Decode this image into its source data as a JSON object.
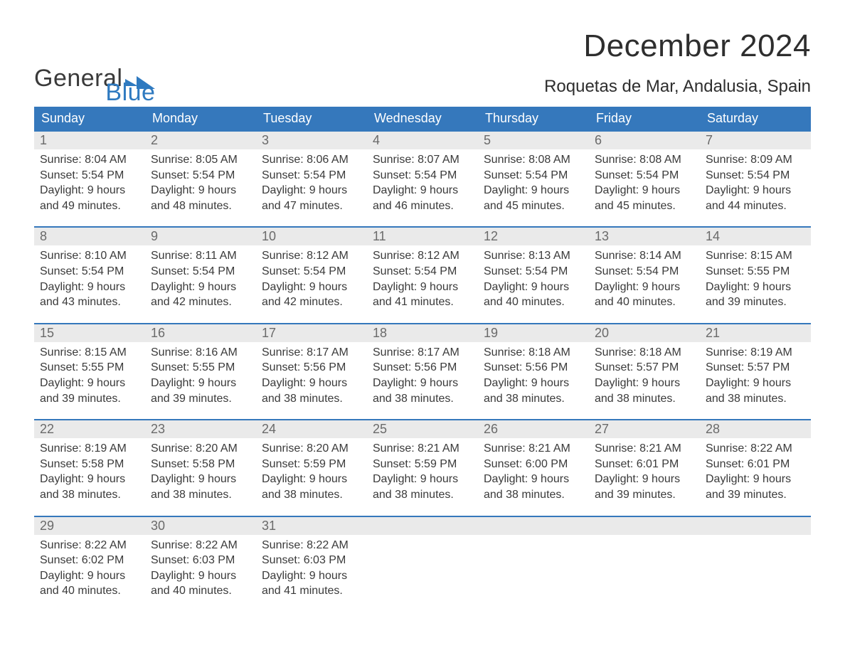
{
  "logo": {
    "text_general": "General",
    "text_blue": "Blue"
  },
  "title": "December 2024",
  "location": "Roquetas de Mar, Andalusia, Spain",
  "colors": {
    "header_bg": "#3578bc",
    "header_text": "#ffffff",
    "daynum_bg": "#eaeaea",
    "daynum_text": "#6a6a6a",
    "body_text": "#3a3a3a",
    "logo_blue": "#2f7ac0",
    "rule": "#3578bc",
    "background": "#ffffff"
  },
  "typography": {
    "title_fontsize": 44,
    "location_fontsize": 24,
    "dow_fontsize": 18,
    "daynum_fontsize": 18,
    "cell_fontsize": 16
  },
  "days_of_week": [
    "Sunday",
    "Monday",
    "Tuesday",
    "Wednesday",
    "Thursday",
    "Friday",
    "Saturday"
  ],
  "weeks": [
    [
      {
        "n": "1",
        "sunrise": "Sunrise: 8:04 AM",
        "sunset": "Sunset: 5:54 PM",
        "d1": "Daylight: 9 hours",
        "d2": "and 49 minutes."
      },
      {
        "n": "2",
        "sunrise": "Sunrise: 8:05 AM",
        "sunset": "Sunset: 5:54 PM",
        "d1": "Daylight: 9 hours",
        "d2": "and 48 minutes."
      },
      {
        "n": "3",
        "sunrise": "Sunrise: 8:06 AM",
        "sunset": "Sunset: 5:54 PM",
        "d1": "Daylight: 9 hours",
        "d2": "and 47 minutes."
      },
      {
        "n": "4",
        "sunrise": "Sunrise: 8:07 AM",
        "sunset": "Sunset: 5:54 PM",
        "d1": "Daylight: 9 hours",
        "d2": "and 46 minutes."
      },
      {
        "n": "5",
        "sunrise": "Sunrise: 8:08 AM",
        "sunset": "Sunset: 5:54 PM",
        "d1": "Daylight: 9 hours",
        "d2": "and 45 minutes."
      },
      {
        "n": "6",
        "sunrise": "Sunrise: 8:08 AM",
        "sunset": "Sunset: 5:54 PM",
        "d1": "Daylight: 9 hours",
        "d2": "and 45 minutes."
      },
      {
        "n": "7",
        "sunrise": "Sunrise: 8:09 AM",
        "sunset": "Sunset: 5:54 PM",
        "d1": "Daylight: 9 hours",
        "d2": "and 44 minutes."
      }
    ],
    [
      {
        "n": "8",
        "sunrise": "Sunrise: 8:10 AM",
        "sunset": "Sunset: 5:54 PM",
        "d1": "Daylight: 9 hours",
        "d2": "and 43 minutes."
      },
      {
        "n": "9",
        "sunrise": "Sunrise: 8:11 AM",
        "sunset": "Sunset: 5:54 PM",
        "d1": "Daylight: 9 hours",
        "d2": "and 42 minutes."
      },
      {
        "n": "10",
        "sunrise": "Sunrise: 8:12 AM",
        "sunset": "Sunset: 5:54 PM",
        "d1": "Daylight: 9 hours",
        "d2": "and 42 minutes."
      },
      {
        "n": "11",
        "sunrise": "Sunrise: 8:12 AM",
        "sunset": "Sunset: 5:54 PM",
        "d1": "Daylight: 9 hours",
        "d2": "and 41 minutes."
      },
      {
        "n": "12",
        "sunrise": "Sunrise: 8:13 AM",
        "sunset": "Sunset: 5:54 PM",
        "d1": "Daylight: 9 hours",
        "d2": "and 40 minutes."
      },
      {
        "n": "13",
        "sunrise": "Sunrise: 8:14 AM",
        "sunset": "Sunset: 5:54 PM",
        "d1": "Daylight: 9 hours",
        "d2": "and 40 minutes."
      },
      {
        "n": "14",
        "sunrise": "Sunrise: 8:15 AM",
        "sunset": "Sunset: 5:55 PM",
        "d1": "Daylight: 9 hours",
        "d2": "and 39 minutes."
      }
    ],
    [
      {
        "n": "15",
        "sunrise": "Sunrise: 8:15 AM",
        "sunset": "Sunset: 5:55 PM",
        "d1": "Daylight: 9 hours",
        "d2": "and 39 minutes."
      },
      {
        "n": "16",
        "sunrise": "Sunrise: 8:16 AM",
        "sunset": "Sunset: 5:55 PM",
        "d1": "Daylight: 9 hours",
        "d2": "and 39 minutes."
      },
      {
        "n": "17",
        "sunrise": "Sunrise: 8:17 AM",
        "sunset": "Sunset: 5:56 PM",
        "d1": "Daylight: 9 hours",
        "d2": "and 38 minutes."
      },
      {
        "n": "18",
        "sunrise": "Sunrise: 8:17 AM",
        "sunset": "Sunset: 5:56 PM",
        "d1": "Daylight: 9 hours",
        "d2": "and 38 minutes."
      },
      {
        "n": "19",
        "sunrise": "Sunrise: 8:18 AM",
        "sunset": "Sunset: 5:56 PM",
        "d1": "Daylight: 9 hours",
        "d2": "and 38 minutes."
      },
      {
        "n": "20",
        "sunrise": "Sunrise: 8:18 AM",
        "sunset": "Sunset: 5:57 PM",
        "d1": "Daylight: 9 hours",
        "d2": "and 38 minutes."
      },
      {
        "n": "21",
        "sunrise": "Sunrise: 8:19 AM",
        "sunset": "Sunset: 5:57 PM",
        "d1": "Daylight: 9 hours",
        "d2": "and 38 minutes."
      }
    ],
    [
      {
        "n": "22",
        "sunrise": "Sunrise: 8:19 AM",
        "sunset": "Sunset: 5:58 PM",
        "d1": "Daylight: 9 hours",
        "d2": "and 38 minutes."
      },
      {
        "n": "23",
        "sunrise": "Sunrise: 8:20 AM",
        "sunset": "Sunset: 5:58 PM",
        "d1": "Daylight: 9 hours",
        "d2": "and 38 minutes."
      },
      {
        "n": "24",
        "sunrise": "Sunrise: 8:20 AM",
        "sunset": "Sunset: 5:59 PM",
        "d1": "Daylight: 9 hours",
        "d2": "and 38 minutes."
      },
      {
        "n": "25",
        "sunrise": "Sunrise: 8:21 AM",
        "sunset": "Sunset: 5:59 PM",
        "d1": "Daylight: 9 hours",
        "d2": "and 38 minutes."
      },
      {
        "n": "26",
        "sunrise": "Sunrise: 8:21 AM",
        "sunset": "Sunset: 6:00 PM",
        "d1": "Daylight: 9 hours",
        "d2": "and 38 minutes."
      },
      {
        "n": "27",
        "sunrise": "Sunrise: 8:21 AM",
        "sunset": "Sunset: 6:01 PM",
        "d1": "Daylight: 9 hours",
        "d2": "and 39 minutes."
      },
      {
        "n": "28",
        "sunrise": "Sunrise: 8:22 AM",
        "sunset": "Sunset: 6:01 PM",
        "d1": "Daylight: 9 hours",
        "d2": "and 39 minutes."
      }
    ],
    [
      {
        "n": "29",
        "sunrise": "Sunrise: 8:22 AM",
        "sunset": "Sunset: 6:02 PM",
        "d1": "Daylight: 9 hours",
        "d2": "and 40 minutes."
      },
      {
        "n": "30",
        "sunrise": "Sunrise: 8:22 AM",
        "sunset": "Sunset: 6:03 PM",
        "d1": "Daylight: 9 hours",
        "d2": "and 40 minutes."
      },
      {
        "n": "31",
        "sunrise": "Sunrise: 8:22 AM",
        "sunset": "Sunset: 6:03 PM",
        "d1": "Daylight: 9 hours",
        "d2": "and 41 minutes."
      },
      null,
      null,
      null,
      null
    ]
  ]
}
